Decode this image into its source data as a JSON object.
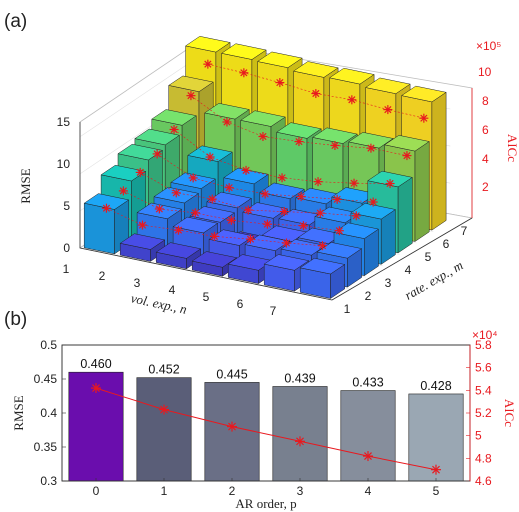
{
  "chart_data": [
    {
      "panel": "(a)",
      "type": "bar3d",
      "xlabel": "vol. exp., n",
      "ylabel": "rate. exp., m",
      "zlabel": "RMSE",
      "zlabel_right": "AICc",
      "exponent_right": "×10⁵",
      "x_ticks": [
        "1",
        "2",
        "3",
        "4",
        "5",
        "6",
        "7"
      ],
      "y_ticks": [
        "1",
        "2",
        "3",
        "4",
        "5",
        "6",
        "7"
      ],
      "z_ticks": [
        "0",
        "5",
        "10",
        "15"
      ],
      "right_ticks": [
        "2",
        "4",
        "6",
        "8",
        "10"
      ],
      "zlim": [
        0,
        17
      ],
      "right_lim": [
        0,
        11
      ],
      "note": "rmse[m-1][n-1]",
      "rmse": [
        [
          6.0,
          1.6,
          1.4,
          1.2,
          1.8,
          2.8,
          3.3
        ],
        [
          8.3,
          4.2,
          3.3,
          2.6,
          2.9,
          3.3,
          3.9
        ],
        [
          9.6,
          4.8,
          3.2,
          0.8,
          2.6,
          3.3,
          5.0
        ],
        [
          10.1,
          5.2,
          3.6,
          3.2,
          3.3,
          4.6,
          6.1
        ],
        [
          11.2,
          7.3,
          5.3,
          4.3,
          4.6,
          5.7,
          8.9
        ],
        [
          14.2,
          11.5,
          11.5,
          10.9,
          11.2,
          11.6,
          12.2
        ],
        [
          18.0,
          18.0,
          17.9,
          17.6,
          17.7,
          17.4,
          17.3
        ]
      ],
      "aicc": [
        [
          3.2,
          2.4,
          2.6,
          2.7,
          3.1,
          3.4,
          3.8
        ],
        [
          3.7,
          2.8,
          3.1,
          3.1,
          3.4,
          3.9,
          4.1
        ],
        [
          4.3,
          3.2,
          3.3,
          3.0,
          3.5,
          4.0,
          4.4
        ],
        [
          4.9,
          3.5,
          3.3,
          3.4,
          3.8,
          4.2,
          4.6
        ],
        [
          6.0,
          4.3,
          3.8,
          3.8,
          4.1,
          4.6,
          5.2
        ],
        [
          7.9,
          6.3,
          5.7,
          5.9,
          6.2,
          6.6,
          6.6
        ],
        [
          9.6,
          9.5,
          9.3,
          9.0,
          9.1,
          8.9,
          8.8
        ]
      ]
    },
    {
      "panel": "(b)",
      "type": "bar",
      "xlabel": "AR order, p",
      "ylabel": "RMSE",
      "ylabel_right": "AICc",
      "exponent_right": "×10⁴",
      "categories": [
        "0",
        "1",
        "2",
        "3",
        "4",
        "5"
      ],
      "values": [
        0.46,
        0.452,
        0.445,
        0.439,
        0.433,
        0.428
      ],
      "value_labels": [
        "0.460",
        "0.452",
        "0.445",
        "0.439",
        "0.433",
        "0.428"
      ],
      "y_ticks": [
        "0.3",
        "0.35",
        "0.4",
        "0.45",
        "0.5"
      ],
      "ylim": [
        0.3,
        0.5
      ],
      "right_ticks": [
        "4.6",
        "4.8",
        "5",
        "5.2",
        "5.4",
        "5.6",
        "5.8"
      ],
      "right_lim": [
        4.6,
        5.8
      ],
      "aicc": [
        5.42,
        5.23,
        5.08,
        4.95,
        4.82,
        4.7
      ],
      "colors": [
        "#6a0dad",
        "#5a5e78",
        "#6a6f86",
        "#78808f",
        "#868e9c",
        "#9aa7b3"
      ],
      "line_color": "#e8191f"
    }
  ]
}
